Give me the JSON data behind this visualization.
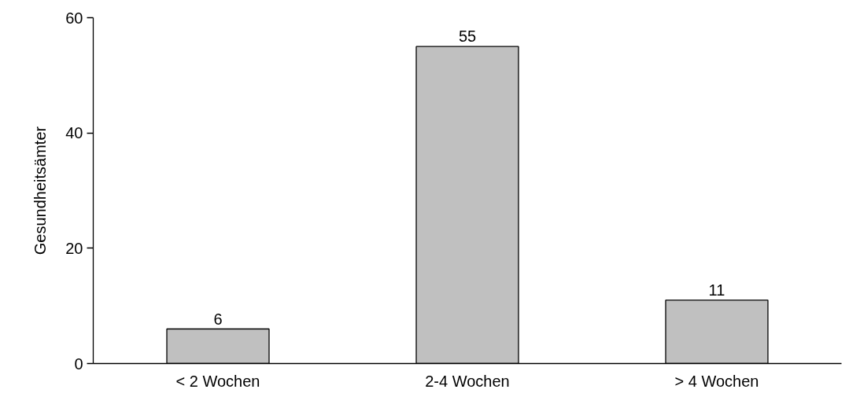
{
  "chart_data": {
    "type": "bar",
    "ylabel": "Gesundheitsämter",
    "categories": [
      "< 2 Wochen",
      "2-4 Wochen",
      "> 4 Wochen"
    ],
    "values": [
      6,
      55,
      11
    ],
    "color": "#c0c0c0",
    "ylim": [
      0,
      60
    ],
    "yticks": [
      0,
      20,
      40,
      60
    ],
    "grid": false,
    "data_labels": true
  }
}
